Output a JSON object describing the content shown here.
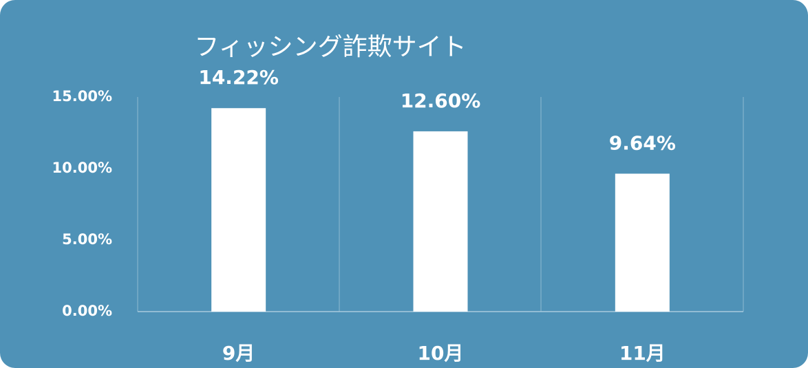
{
  "chart_data": {
    "type": "bar",
    "title": "フィッシング詐欺サイト",
    "categories": [
      "9月",
      "10月",
      "11月"
    ],
    "values": [
      14.22,
      12.6,
      9.64
    ],
    "value_labels": [
      "14.22%",
      "12.60%",
      "9.64%"
    ],
    "color": "#ffffff",
    "ylim": [
      0,
      15
    ],
    "yticks": [
      {
        "value": 0,
        "label": "0.00%"
      },
      {
        "value": 5,
        "label": "5.00%"
      },
      {
        "value": 10,
        "label": "10.00%"
      },
      {
        "value": 15,
        "label": "15.00%"
      }
    ]
  }
}
